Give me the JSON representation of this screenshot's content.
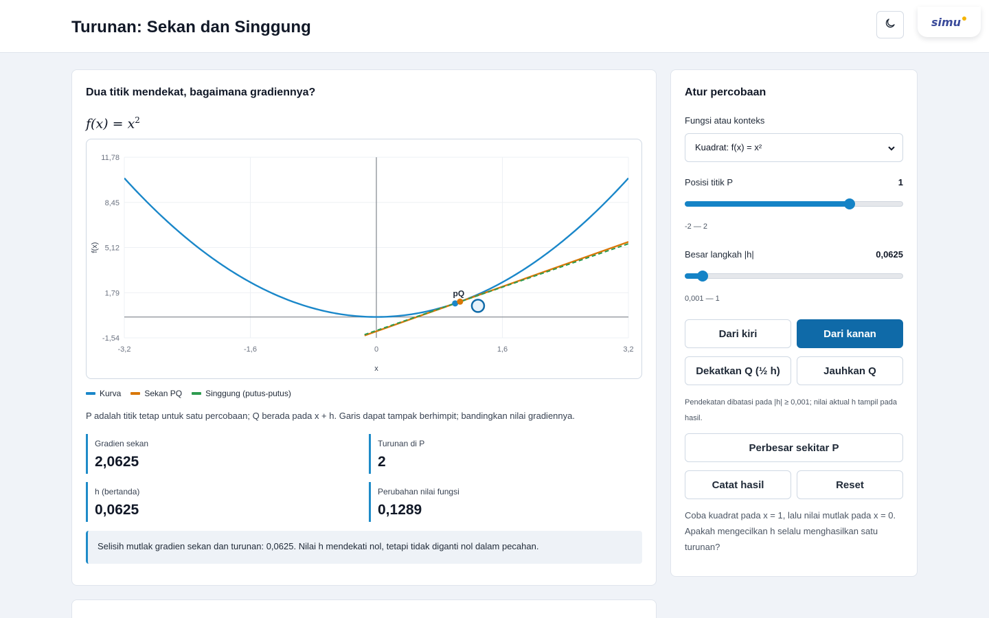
{
  "header": {
    "title": "Turunan: Sekan dan Singgung",
    "logo_text": "simu"
  },
  "main": {
    "heading": "Dua titik mendekat, bagaimana gradiennya?",
    "formula_base": "f(x) = x",
    "formula_exp": "2",
    "legend": [
      "Kurva",
      "Sekan PQ",
      "Singgung (putus-putus)"
    ],
    "explain": "P adalah titik tetap untuk satu percobaan; Q berada pada x + h. Garis dapat tampak berhimpit; bandingkan nilai gradiennya.",
    "stats": [
      {
        "label": "Gradien sekan",
        "value": "2,0625"
      },
      {
        "label": "Turunan di P",
        "value": "2"
      },
      {
        "label": "h (bertanda)",
        "value": "0,0625"
      },
      {
        "label": "Perubahan nilai fungsi",
        "value": "0,1289"
      }
    ],
    "note": "Selisih mutlak gradien sekan dan turunan: 0,0625. Nilai h mendekati nol, tetapi tidak diganti nol dalam pecahan."
  },
  "chart_data": {
    "type": "line",
    "xlabel": "x",
    "ylabel": "f(x)",
    "xlim": [
      -3.2,
      3.2
    ],
    "ylim": [
      -1.54,
      11.78
    ],
    "x_ticks": [
      "-3,2",
      "-1,6",
      "0",
      "1,6",
      "3,2"
    ],
    "y_ticks": [
      "11,78",
      "8,45",
      "5,12",
      "1,79",
      "-1,54"
    ],
    "point_label": "pQ",
    "series": [
      {
        "name": "Kurva",
        "function": "x^2",
        "color": "#1a87c9"
      },
      {
        "name": "Sekan PQ",
        "slope": 2.0625,
        "through": [
          1,
          1
        ],
        "color": "#d97706"
      },
      {
        "name": "Singgung (putus-putus)",
        "slope": 2,
        "through": [
          1,
          1
        ],
        "color": "#2e9b4f",
        "dashed": true
      }
    ],
    "points": [
      {
        "name": "P",
        "x": 1,
        "y": 1
      },
      {
        "name": "Q",
        "x": 1.0625,
        "y": 1.1289
      }
    ],
    "cursor": {
      "x": 1.29,
      "y": 0.82
    }
  },
  "side": {
    "heading": "Atur percobaan",
    "function_label": "Fungsi atau konteks",
    "function_value": "Kuadrat: f(x) = x²",
    "p_label": "Posisi titik P",
    "p_value": "1",
    "p_fraction": 0.75,
    "p_range": "-2 — 2",
    "h_label": "Besar langkah |h|",
    "h_value": "0,0625",
    "h_fraction": 0.08,
    "h_range": "0,001 — 1",
    "btn_left": "Dari kiri",
    "btn_right": "Dari kanan",
    "btn_closer": "Dekatkan Q (½ h)",
    "btn_farther": "Jauhkan Q",
    "limit_note": "Pendekatan dibatasi pada |h| ≥ 0,001; nilai aktual h tampil pada hasil.",
    "btn_zoom": "Perbesar sekitar P",
    "btn_record": "Catat hasil",
    "btn_reset": "Reset",
    "hint": "Coba kuadrat pada x = 1, lalu nilai mutlak pada x = 0. Apakah mengecilkan h selalu menghasilkan satu turunan?"
  },
  "colors": {
    "accent": "#1583c6",
    "primary_button": "#0f6aa8",
    "curve": "#1a87c9",
    "secant": "#d97706",
    "tangent": "#2e9b4f"
  }
}
